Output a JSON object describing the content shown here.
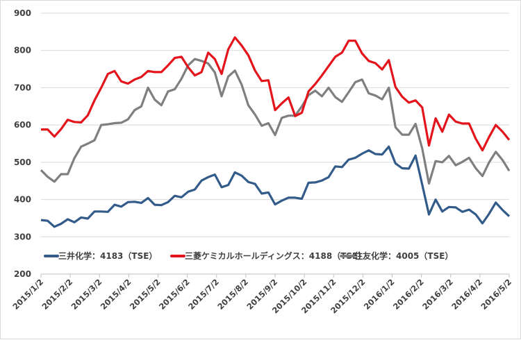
{
  "chart_data": {
    "type": "line",
    "title": "",
    "xlabel": "",
    "ylabel": "",
    "ylim": [
      200,
      900
    ],
    "yticks": [
      "200",
      "300",
      "400",
      "500",
      "600",
      "700",
      "800",
      "900"
    ],
    "grid": true,
    "legend_position": "bottom-inside",
    "x_tick_labels": [
      "2015/1/2",
      "2015/2/2",
      "2015/3/2",
      "2015/4/2",
      "2015/5/2",
      "2015/6/2",
      "2015/7/2",
      "2015/8/2",
      "2015/9/2",
      "2015/10/2",
      "2015/11/2",
      "2015/12/2",
      "2016/1/2",
      "2016/2/2",
      "2016/3/2",
      "2016/4/2",
      "2016/5/2"
    ],
    "x_frequency": "weekly",
    "series": [
      {
        "name": "三井化学：4183（TSE）",
        "color": "#335b8a",
        "values": [
          345,
          343,
          327,
          335,
          347,
          339,
          352,
          349,
          368,
          368,
          367,
          386,
          381,
          393,
          394,
          391,
          404,
          386,
          385,
          393,
          410,
          406,
          421,
          427,
          451,
          460,
          467,
          433,
          439,
          473,
          464,
          447,
          442,
          416,
          419,
          387,
          397,
          405,
          405,
          402,
          445,
          446,
          451,
          460,
          489,
          487,
          507,
          512,
          523,
          532,
          522,
          521,
          542,
          497,
          484,
          483,
          518,
          440,
          360,
          400,
          368,
          380,
          379,
          367,
          373,
          360,
          336,
          362,
          392,
          372,
          355
        ]
      },
      {
        "name": "三菱ケミカルホールディングス：4188（TSE）",
        "color": "#e3141b",
        "values": [
          588,
          588,
          569,
          589,
          614,
          608,
          607,
          626,
          666,
          700,
          737,
          745,
          717,
          711,
          722,
          729,
          745,
          742,
          742,
          760,
          780,
          783,
          755,
          733,
          742,
          794,
          777,
          737,
          803,
          835,
          813,
          787,
          746,
          718,
          720,
          640,
          658,
          674,
          624,
          633,
          690,
          710,
          733,
          758,
          783,
          794,
          826,
          826,
          792,
          772,
          766,
          749,
          774,
          702,
          676,
          660,
          666,
          647,
          545,
          618,
          582,
          628,
          609,
          604,
          604,
          563,
          532,
          568,
          600,
          582,
          560
        ]
      },
      {
        "name": "住友化学：4005（TSE）",
        "color": "#7f7f7f",
        "values": [
          479,
          461,
          448,
          468,
          468,
          511,
          542,
          550,
          559,
          600,
          602,
          605,
          606,
          615,
          640,
          650,
          700,
          668,
          653,
          690,
          696,
          724,
          760,
          777,
          772,
          765,
          741,
          677,
          730,
          746,
          708,
          653,
          628,
          598,
          605,
          573,
          619,
          625,
          625,
          650,
          680,
          692,
          677,
          700,
          675,
          662,
          688,
          715,
          722,
          685,
          679,
          669,
          700,
          594,
          574,
          574,
          603,
          537,
          443,
          503,
          500,
          517,
          492,
          501,
          512,
          484,
          463,
          500,
          528,
          506,
          477
        ]
      }
    ]
  }
}
